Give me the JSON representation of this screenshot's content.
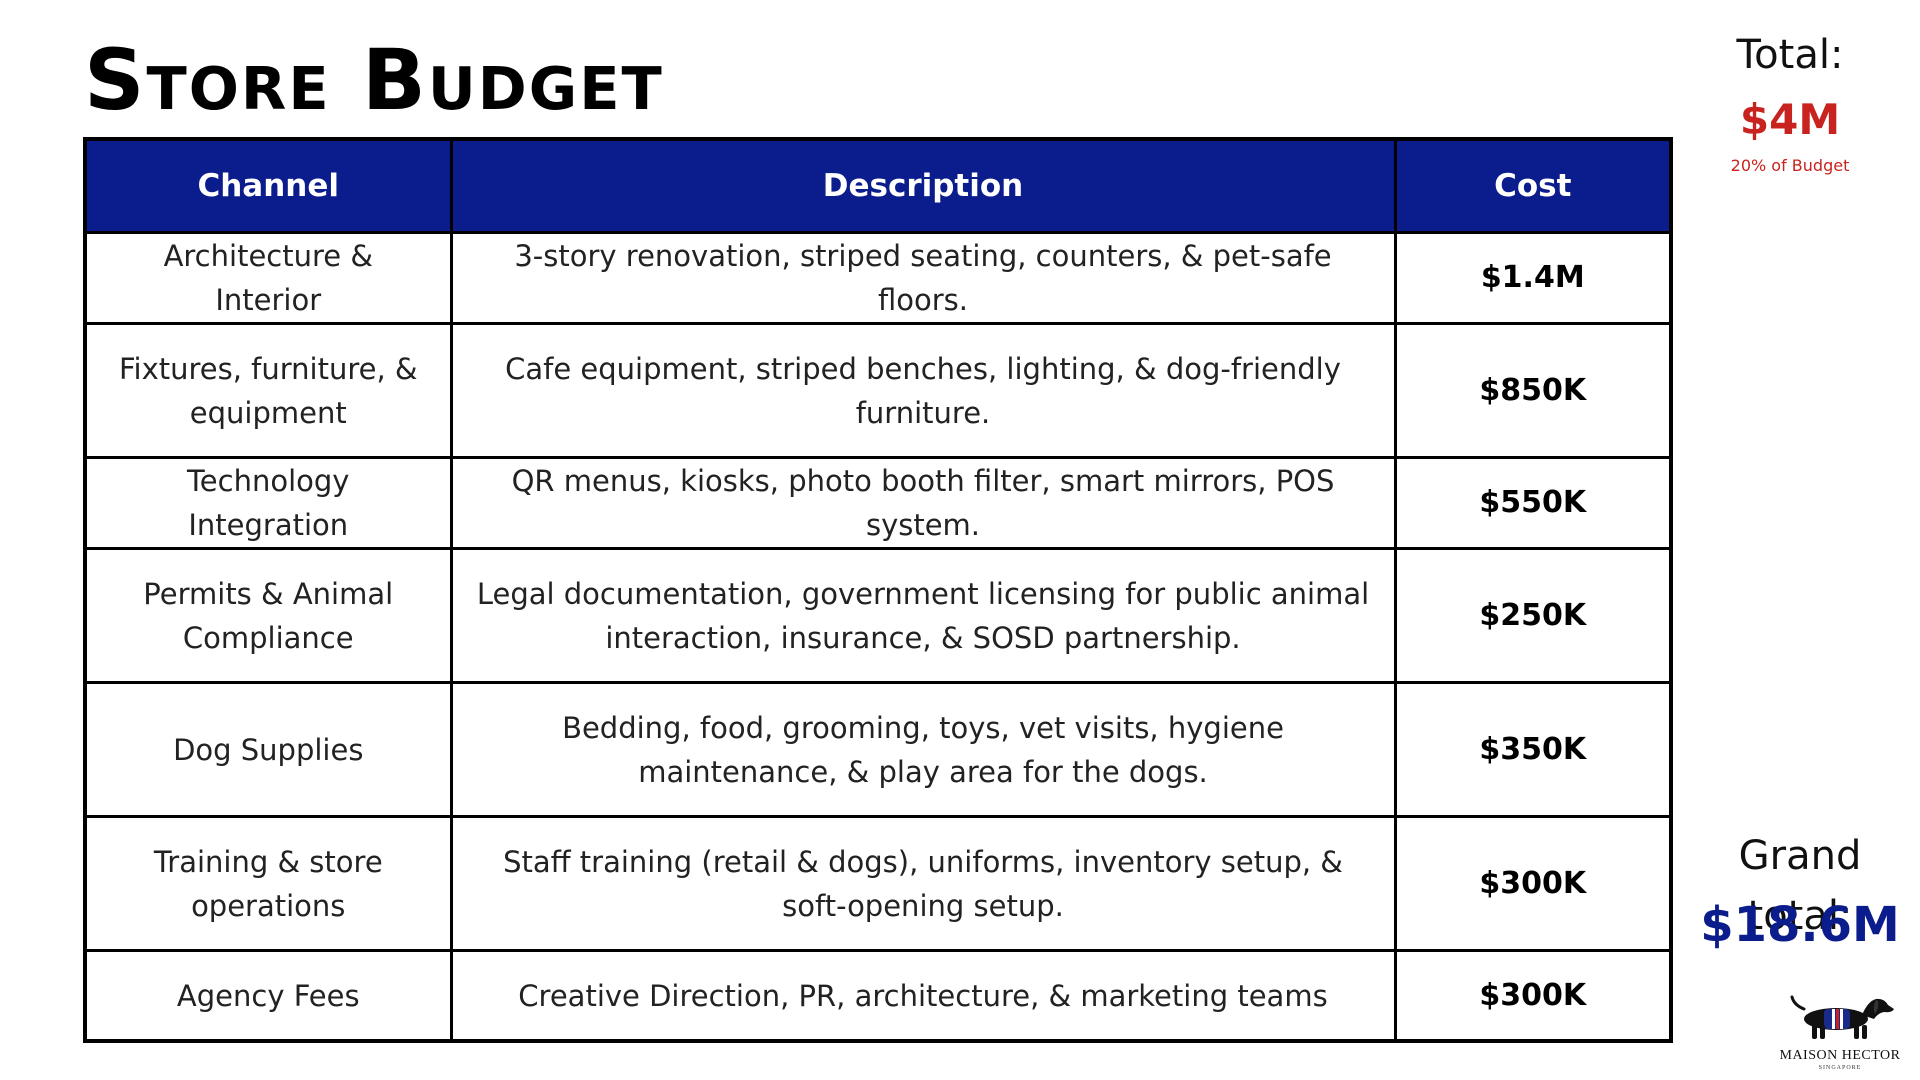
{
  "title": "Store Budget",
  "table": {
    "headers": {
      "channel": "Channel",
      "description": "Description",
      "cost": "Cost"
    },
    "rows": [
      {
        "channel": "Architecture & Interior",
        "description": "3-story renovation, striped seating, counters, & pet-safe floors.",
        "cost": "$1.4M"
      },
      {
        "channel": "Fixtures, furniture, & equipment",
        "description": "Cafe equipment, striped benches, lighting, & dog-friendly furniture.",
        "cost": "$850K"
      },
      {
        "channel": "Technology Integration",
        "description": "QR menus, kiosks, photo booth filter, smart mirrors, POS system.",
        "cost": "$550K"
      },
      {
        "channel": "Permits & Animal Compliance",
        "description": "Legal documentation, government licensing for public animal interaction, insurance, & SOSD partnership.",
        "cost": "$250K"
      },
      {
        "channel": "Dog Supplies",
        "description": "Bedding, food, grooming, toys, vet visits, hygiene maintenance, & play area for the dogs.",
        "cost": "$350K"
      },
      {
        "channel": "Training & store operations",
        "description": "Staff training (retail & dogs), uniforms, inventory setup, & soft-opening setup.",
        "cost": "$300K"
      },
      {
        "channel": "Agency Fees",
        "description": "Creative Direction, PR, architecture, & marketing teams",
        "cost": "$300K"
      }
    ]
  },
  "summary": {
    "total_label": "Total:",
    "total_value": "$4M",
    "total_sub": "20% of Budget",
    "grand_label": "Grand total:",
    "grand_value": "$18.6M"
  },
  "logo": {
    "icon": "dachshund-icon",
    "name": "MAISON HECTOR",
    "sub": "SINGAPORE"
  },
  "colors": {
    "header_bg": "#0b1c8c",
    "accent_red": "#c8231f",
    "grand_blue": "#0b1c8c"
  }
}
